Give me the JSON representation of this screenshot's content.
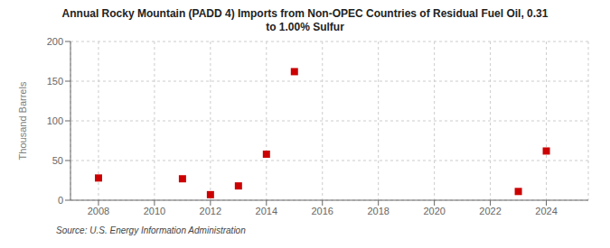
{
  "chart_data": {
    "type": "scatter",
    "title": "Annual Rocky Mountain (PADD 4) Imports from Non-OPEC Countries of Residual Fuel Oil, 0.31\nto 1.00% Sulfur",
    "y_label": "Thousand Barrels",
    "annotations": [
      "Source: U.S. Energy Information Administration"
    ],
    "x": [
      2008,
      2011,
      2012,
      2013,
      2014,
      2015,
      2023,
      2024
    ],
    "values": [
      28,
      27,
      7,
      18,
      58,
      162,
      11,
      62
    ],
    "color": "#cc0000",
    "marker": "square",
    "xlim": [
      2007,
      2025.5
    ],
    "ylim": [
      0,
      200
    ],
    "xticks": [
      2008,
      2010,
      2012,
      2014,
      2016,
      2018,
      2020,
      2022,
      2024
    ],
    "yticks": [
      0,
      50,
      100,
      150,
      200
    ],
    "grid": true
  }
}
